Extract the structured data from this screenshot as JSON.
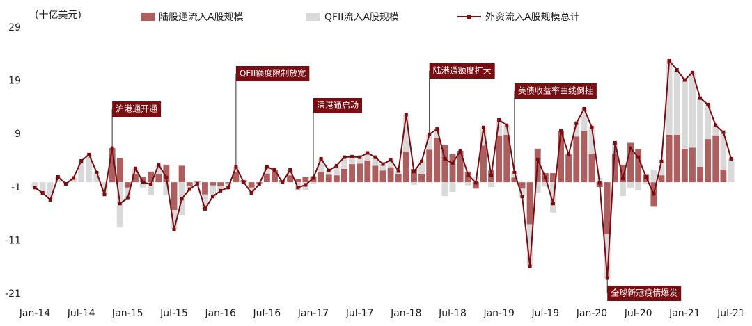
{
  "chart_data": {
    "type": "bar",
    "stacked": true,
    "y_label": "(十亿美元)",
    "ylim": [
      -21,
      29
    ],
    "yticks": [
      -21,
      -11,
      -1,
      9,
      19,
      29
    ],
    "categories": [
      "Jan-14",
      null,
      null,
      null,
      null,
      null,
      "Jul-14",
      null,
      null,
      null,
      null,
      null,
      "Jan-15",
      null,
      null,
      null,
      null,
      null,
      "Jul-15",
      null,
      null,
      null,
      null,
      null,
      "Jan-16",
      null,
      null,
      null,
      null,
      null,
      "Jul-16",
      null,
      null,
      null,
      null,
      null,
      "Jan-17",
      null,
      null,
      null,
      null,
      null,
      "Jul-17",
      null,
      null,
      null,
      null,
      null,
      "Jan-18",
      null,
      null,
      null,
      null,
      null,
      "Jul-18",
      null,
      null,
      null,
      null,
      null,
      "Jan-19",
      null,
      null,
      null,
      null,
      null,
      "Jul-19",
      null,
      null,
      null,
      null,
      null,
      "Jan-20",
      null,
      null,
      null,
      null,
      null,
      "Jul-20",
      null,
      null,
      null,
      null,
      null,
      "Jan-21",
      null,
      null,
      null,
      null,
      null,
      "Jul-21"
    ],
    "series": [
      {
        "name": "陆股通流入A股规模",
        "kind": "bar",
        "color": "#ad5f5f",
        "values": [
          0,
          0,
          0,
          0,
          0,
          0,
          0,
          0,
          0,
          0,
          6.4,
          4.5,
          -1,
          1.6,
          1,
          2,
          1.5,
          3.3,
          -5.2,
          3.1,
          -0.8,
          0.1,
          -2.3,
          -0.6,
          -0.8,
          -0.2,
          1.9,
          0.4,
          -1,
          -0.2,
          1.5,
          2.3,
          0.4,
          1.3,
          0.6,
          1,
          1.1,
          2,
          1.4,
          1.3,
          2.5,
          3.4,
          3.5,
          4.1,
          3.1,
          2.2,
          2.8,
          1.5,
          5.8,
          2.5,
          1.6,
          6.1,
          8.3,
          7,
          5.3,
          5.9,
          2,
          -1.2,
          6.9,
          2.2,
          8.8,
          8.9,
          0.9,
          -1.2,
          -7.9,
          6.3,
          1.7,
          1.7,
          9.6,
          5.2,
          8.6,
          9.6,
          5.4,
          -0.9,
          -9.8,
          5.3,
          3.3,
          7.4,
          6.2,
          1.4,
          -4.6,
          1.3,
          8.9,
          8.9,
          6.3,
          6.5,
          2.9,
          8.1,
          8.8,
          2.4,
          0
        ]
      },
      {
        "name": "QFII流入A股规模",
        "kind": "bar",
        "color": "#d9d9d9",
        "values": [
          -1,
          -2,
          -3.3,
          1,
          -0.3,
          0.8,
          4,
          5.2,
          1.8,
          -2.3,
          0,
          -8.5,
          -2,
          1,
          -1,
          -2.4,
          1.8,
          -2.4,
          -3.7,
          -6.2,
          -0.5,
          -0.4,
          -2.7,
          -2.1,
          -0.8,
          -0.8,
          1,
          -0.4,
          -1,
          -0.2,
          1.4,
          0,
          -0.4,
          1,
          -1.6,
          -1.5,
          -0.3,
          2.4,
          0.8,
          1.8,
          2.2,
          1.4,
          1.2,
          1.4,
          1.6,
          1.2,
          1.4,
          0.6,
          6.9,
          -0.5,
          2.3,
          2.9,
          1.7,
          -2.6,
          -1.8,
          0,
          -0.6,
          1.1,
          3.4,
          -0.9,
          2.9,
          1.8,
          0.9,
          -1.5,
          -7.9,
          -2,
          -0.8,
          -5.7,
          0.1,
          0,
          2.5,
          4.2,
          4.9,
          0.8,
          -8.2,
          2.1,
          -2.6,
          -1,
          -1.5,
          -0.4,
          2.4,
          2.6,
          13.9,
          12.2,
          12.9,
          14.1,
          12.9,
          6.5,
          1.9,
          7,
          4.4
        ]
      },
      {
        "name": "外资流入A股规模总计",
        "kind": "line",
        "color": "#7a0d12",
        "values": [
          -1,
          -2,
          -3.3,
          1,
          -0.3,
          0.8,
          4,
          5.2,
          1.8,
          -2.3,
          6.4,
          -4,
          -3,
          2.6,
          0,
          -0.4,
          3.3,
          0.9,
          -8.9,
          -3.1,
          -1.3,
          -0.3,
          -5,
          -2.7,
          -1.6,
          -1,
          2.9,
          0,
          -2,
          -0.4,
          2.9,
          2.3,
          0,
          2.3,
          -1,
          -0.5,
          0.8,
          4.4,
          2.2,
          3.1,
          4.7,
          4.8,
          4.7,
          5.5,
          4.7,
          3.4,
          4.2,
          2.1,
          12.7,
          2,
          3.9,
          9,
          10,
          4.4,
          3.5,
          5.9,
          1.4,
          -0.1,
          10.3,
          1.3,
          11.7,
          10.7,
          1.8,
          -2.7,
          -15.8,
          4.3,
          0.9,
          -4,
          9.7,
          5.2,
          11.1,
          13.8,
          10.3,
          -0.1,
          -18,
          7.4,
          0.7,
          6.4,
          4.7,
          1,
          -2.2,
          3.9,
          22.8,
          21.1,
          19.2,
          20.6,
          15.8,
          14.6,
          10.7,
          9.4,
          4.4
        ]
      }
    ],
    "annotations": [
      "沪港通开通",
      "QFII额度限制放宽",
      "深港通启动",
      "陆港通额度扩大",
      "美债收益率曲线倒挂",
      "全球新冠疫情爆发"
    ]
  }
}
